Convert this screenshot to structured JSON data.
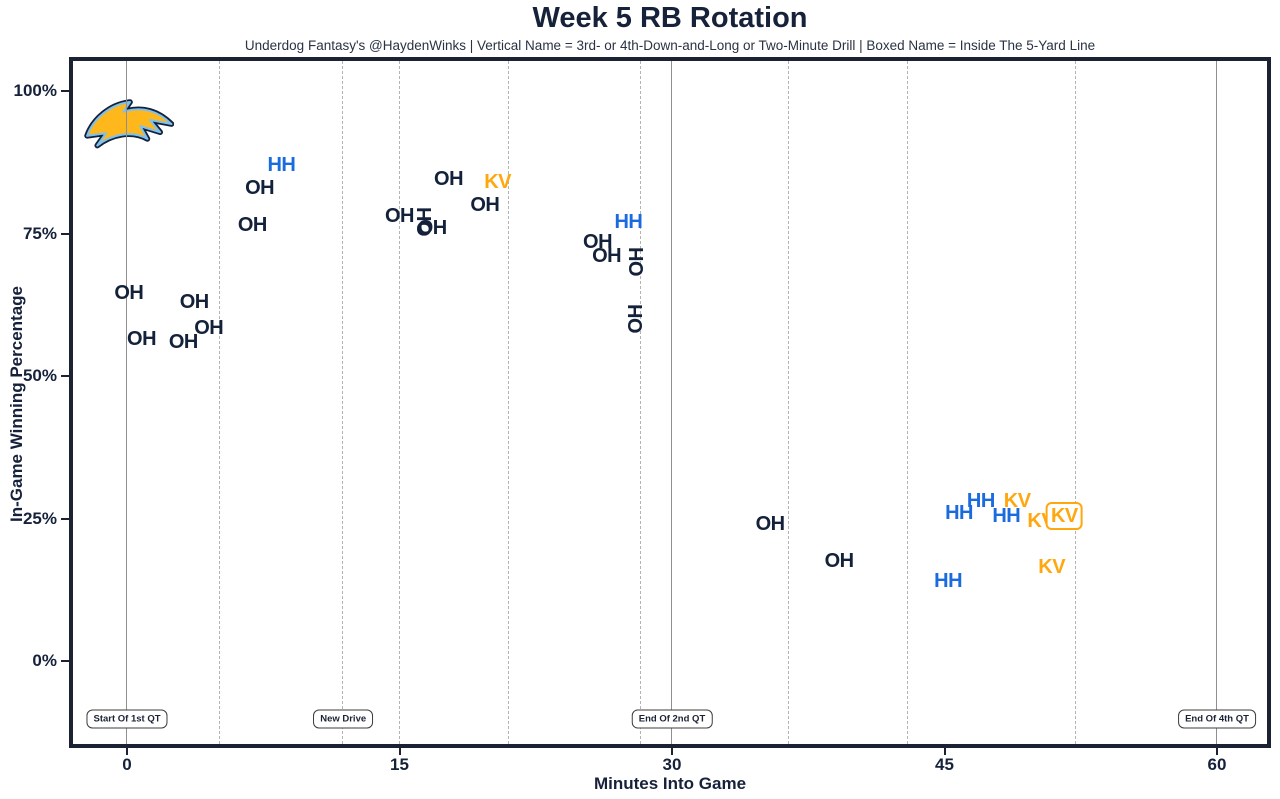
{
  "title": "Week 5 RB Rotation",
  "subtitle": "Underdog Fantasy's @HaydenWinks | Vertical Name = 3rd- or 4th-Down-and-Long or Two-Minute Drill | Boxed Name = Inside The 5-Yard Line",
  "x_axis": {
    "label": "Minutes Into Game",
    "tick_labels": [
      "0",
      "15",
      "30",
      "45",
      "60"
    ],
    "tick_values": [
      0,
      15,
      30,
      45,
      60
    ]
  },
  "y_axis": {
    "label": "In-Game Winning Percentage",
    "tick_labels": [
      "0%",
      "25%",
      "50%",
      "75%",
      "100%"
    ],
    "tick_values": [
      0,
      25,
      50,
      75,
      100
    ]
  },
  "team_logo": "los-angeles-chargers-bolt",
  "colors": {
    "navy_text": "#14213A",
    "hh_blue": "#1A6BDD",
    "kv_orange": "#FFA70F",
    "grid_solid": "#8F8F8F",
    "grid_dashed": "#B3B3B3",
    "plot_border": "#1B2234",
    "bolt_gold": "#FFB81C",
    "bolt_outline": "#13213A",
    "bolt_inner": "#7EC0EE"
  },
  "chart_data": {
    "type": "scatter",
    "title": "Week 5 RB Rotation",
    "xlabel": "Minutes Into Game",
    "ylabel": "In-Game Winning Percentage",
    "xlim": [
      -3.2,
      62.8
    ],
    "ylim": [
      -14.6,
      105.2
    ],
    "x_ticks": [
      0,
      15,
      30,
      45,
      60
    ],
    "y_ticks": [
      0,
      25,
      50,
      75,
      100
    ],
    "grid": "vertical-drive-lines-only",
    "legend_position": "none",
    "players": [
      {
        "initials": "OH",
        "color": "navy"
      },
      {
        "initials": "HH",
        "color": "blue"
      },
      {
        "initials": "KV",
        "color": "orange"
      }
    ],
    "points": [
      {
        "label": "OH",
        "x": 0.1,
        "y": 64.5,
        "color": "navy",
        "vertical": false,
        "boxed": false
      },
      {
        "label": "OH",
        "x": 0.8,
        "y": 56.5,
        "color": "navy",
        "vertical": false,
        "boxed": false
      },
      {
        "label": "OH",
        "x": 3.1,
        "y": 56.0,
        "color": "navy",
        "vertical": false,
        "boxed": false
      },
      {
        "label": "OH",
        "x": 3.7,
        "y": 63.0,
        "color": "navy",
        "vertical": false,
        "boxed": false
      },
      {
        "label": "OH",
        "x": 4.5,
        "y": 58.5,
        "color": "navy",
        "vertical": false,
        "boxed": false
      },
      {
        "label": "OH",
        "x": 6.9,
        "y": 76.5,
        "color": "navy",
        "vertical": false,
        "boxed": false
      },
      {
        "label": "OH",
        "x": 7.3,
        "y": 83.0,
        "color": "navy",
        "vertical": false,
        "boxed": false
      },
      {
        "label": "HH",
        "x": 8.5,
        "y": 87.0,
        "color": "blue",
        "vertical": false,
        "boxed": false
      },
      {
        "label": "OH",
        "x": 15.0,
        "y": 78.0,
        "color": "navy",
        "vertical": false,
        "boxed": false
      },
      {
        "label": "OH",
        "x": 16.4,
        "y": 77.0,
        "color": "navy",
        "vertical": true,
        "boxed": false
      },
      {
        "label": "OH",
        "x": 16.8,
        "y": 76.0,
        "color": "navy",
        "vertical": false,
        "boxed": false
      },
      {
        "label": "OH",
        "x": 17.7,
        "y": 84.5,
        "color": "navy",
        "vertical": false,
        "boxed": false
      },
      {
        "label": "OH",
        "x": 19.7,
        "y": 80.0,
        "color": "navy",
        "vertical": false,
        "boxed": false
      },
      {
        "label": "KV",
        "x": 20.4,
        "y": 84.0,
        "color": "orange",
        "vertical": false,
        "boxed": false
      },
      {
        "label": "OH",
        "x": 25.9,
        "y": 73.5,
        "color": "navy",
        "vertical": false,
        "boxed": false
      },
      {
        "label": "OH",
        "x": 26.4,
        "y": 71.0,
        "color": "navy",
        "vertical": false,
        "boxed": false
      },
      {
        "label": "HH",
        "x": 27.6,
        "y": 77.0,
        "color": "blue",
        "vertical": false,
        "boxed": false
      },
      {
        "label": "OH",
        "x": 28.1,
        "y": 70.0,
        "color": "navy",
        "vertical": true,
        "boxed": false
      },
      {
        "label": "OH",
        "x": 28.0,
        "y": 60.0,
        "color": "navy",
        "vertical": true,
        "boxed": false
      },
      {
        "label": "OH",
        "x": 35.4,
        "y": 24.0,
        "color": "navy",
        "vertical": false,
        "boxed": false
      },
      {
        "label": "OH",
        "x": 39.2,
        "y": 17.5,
        "color": "navy",
        "vertical": false,
        "boxed": false
      },
      {
        "label": "HH",
        "x": 45.2,
        "y": 14.0,
        "color": "blue",
        "vertical": false,
        "boxed": false
      },
      {
        "label": "HH",
        "x": 45.8,
        "y": 26.0,
        "color": "blue",
        "vertical": false,
        "boxed": false
      },
      {
        "label": "HH",
        "x": 47.0,
        "y": 28.0,
        "color": "blue",
        "vertical": false,
        "boxed": false
      },
      {
        "label": "HH",
        "x": 48.4,
        "y": 25.5,
        "color": "blue",
        "vertical": false,
        "boxed": false
      },
      {
        "label": "KV",
        "x": 49.0,
        "y": 28.0,
        "color": "orange",
        "vertical": false,
        "boxed": false
      },
      {
        "label": "KV",
        "x": 50.3,
        "y": 24.5,
        "color": "orange",
        "vertical": false,
        "boxed": false
      },
      {
        "label": "KV",
        "x": 51.6,
        "y": 25.5,
        "color": "orange",
        "vertical": false,
        "boxed": true
      },
      {
        "label": "KV",
        "x": 50.9,
        "y": 16.5,
        "color": "orange",
        "vertical": false,
        "boxed": false
      }
    ],
    "vlines": [
      {
        "x": 0,
        "style": "solid"
      },
      {
        "x": 5.1,
        "style": "dashed"
      },
      {
        "x": 11.9,
        "style": "dashed"
      },
      {
        "x": 15.0,
        "style": "dashed"
      },
      {
        "x": 21.0,
        "style": "dashed"
      },
      {
        "x": 28.3,
        "style": "dashed"
      },
      {
        "x": 30,
        "style": "solid"
      },
      {
        "x": 36.4,
        "style": "dashed"
      },
      {
        "x": 43.0,
        "style": "dashed"
      },
      {
        "x": 52.2,
        "style": "dashed"
      },
      {
        "x": 60,
        "style": "solid"
      }
    ],
    "annotations": [
      {
        "text": "Start Of 1st QT",
        "x": 0,
        "y": -10.2
      },
      {
        "text": "New Drive",
        "x": 11.9,
        "y": -10.2
      },
      {
        "text": "End Of 2nd QT",
        "x": 30,
        "y": -10.2
      },
      {
        "text": "End Of 4th QT",
        "x": 60,
        "y": -10.2
      }
    ]
  }
}
